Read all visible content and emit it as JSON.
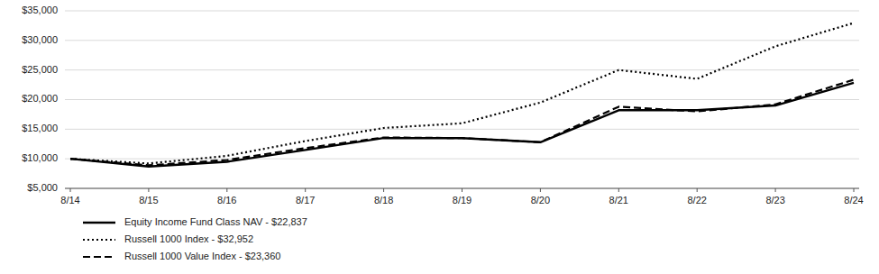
{
  "chart_data": {
    "type": "line",
    "categories": [
      "8/14",
      "8/15",
      "8/16",
      "8/17",
      "8/18",
      "8/19",
      "8/20",
      "8/21",
      "8/22",
      "8/23",
      "8/24"
    ],
    "series": [
      {
        "name": "Equity Income Fund Class NAV - $22,837",
        "color": "#000000",
        "line_style": "solid",
        "values": [
          10000,
          8700,
          9500,
          11500,
          13500,
          13500,
          12800,
          18200,
          18200,
          19000,
          22837
        ]
      },
      {
        "name": "Russell 1000 Index - $32,952",
        "color": "#000000",
        "line_style": "dotted",
        "values": [
          10000,
          9200,
          10500,
          13000,
          15200,
          16000,
          19500,
          25000,
          23500,
          29000,
          32952
        ]
      },
      {
        "name": "Russell 1000 Value Index - $23,360",
        "color": "#000000",
        "line_style": "dashed",
        "values": [
          10000,
          8900,
          9800,
          11800,
          13600,
          13500,
          12800,
          18800,
          18000,
          19200,
          23360
        ]
      }
    ],
    "ylim": [
      5000,
      35000
    ],
    "yticks": [
      {
        "value": 5000,
        "label": "$5,000"
      },
      {
        "value": 10000,
        "label": "$10,000"
      },
      {
        "value": 15000,
        "label": "$15,000"
      },
      {
        "value": 20000,
        "label": "$20,000"
      },
      {
        "value": 25000,
        "label": "$25,000"
      },
      {
        "value": 30000,
        "label": "$30,000"
      },
      {
        "value": 35000,
        "label": "$35,000"
      }
    ],
    "grid": true,
    "legend": "bottom"
  }
}
